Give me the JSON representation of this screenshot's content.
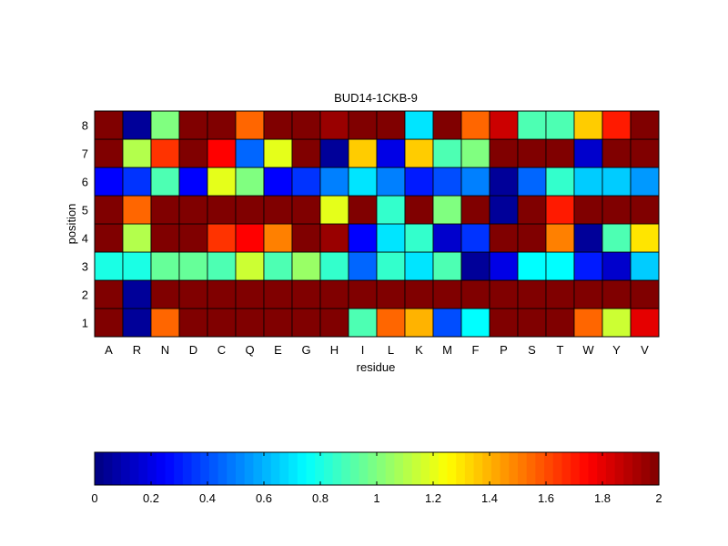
{
  "chart_data": {
    "type": "heatmap",
    "title": "BUD14-1CKB-9",
    "xlabel": "residue",
    "ylabel": "position",
    "x": [
      "A",
      "R",
      "N",
      "D",
      "C",
      "Q",
      "E",
      "G",
      "H",
      "I",
      "L",
      "K",
      "M",
      "F",
      "P",
      "S",
      "T",
      "W",
      "Y",
      "V"
    ],
    "y": [
      "1",
      "2",
      "3",
      "4",
      "5",
      "6",
      "7",
      "8"
    ],
    "values": [
      [
        2.0,
        0.05,
        1.55,
        2.0,
        2.0,
        2.0,
        2.0,
        2.0,
        2.0,
        0.9,
        1.55,
        1.4,
        0.4,
        0.75,
        2.0,
        2.0,
        2.0,
        1.55,
        1.15,
        1.8
      ],
      [
        2.0,
        0.05,
        2.0,
        2.0,
        2.0,
        2.0,
        2.0,
        2.0,
        2.0,
        2.0,
        2.0,
        2.0,
        2.0,
        2.0,
        2.0,
        2.0,
        2.0,
        2.0,
        2.0,
        2.0
      ],
      [
        0.8,
        0.8,
        0.95,
        0.95,
        0.9,
        1.15,
        0.9,
        1.05,
        0.85,
        0.45,
        0.85,
        0.7,
        0.9,
        0.05,
        0.2,
        0.75,
        0.75,
        0.3,
        0.15,
        0.65
      ],
      [
        2.0,
        1.1,
        2.0,
        2.0,
        1.65,
        1.75,
        1.5,
        2.0,
        1.95,
        0.25,
        0.7,
        0.85,
        0.15,
        0.35,
        2.0,
        2.0,
        1.5,
        0.05,
        0.9,
        1.3
      ],
      [
        2.0,
        1.55,
        2.0,
        2.0,
        2.0,
        2.0,
        2.0,
        2.0,
        1.2,
        2.0,
        0.85,
        2.0,
        1.0,
        2.0,
        0.05,
        2.0,
        1.7,
        2.0,
        2.0,
        2.0
      ],
      [
        0.25,
        0.35,
        0.9,
        0.25,
        1.2,
        1.0,
        0.25,
        0.35,
        0.5,
        0.7,
        0.5,
        0.3,
        0.4,
        0.5,
        0.05,
        0.45,
        0.85,
        0.65,
        0.65,
        0.55
      ],
      [
        2.0,
        1.1,
        1.65,
        2.0,
        1.75,
        0.45,
        1.2,
        2.0,
        0.05,
        1.35,
        0.2,
        1.35,
        0.9,
        1.0,
        2.0,
        2.0,
        2.0,
        0.15,
        2.0,
        2.0
      ],
      [
        2.0,
        0.05,
        1.0,
        2.0,
        2.0,
        1.55,
        2.0,
        2.0,
        1.95,
        2.0,
        2.0,
        0.7,
        2.0,
        1.55,
        1.85,
        0.9,
        0.9,
        1.35,
        1.7,
        2.0
      ]
    ],
    "colormap": "jet",
    "clim": [
      0,
      2
    ],
    "colorbar": {
      "orientation": "horizontal",
      "location": "bottom",
      "ticks": [
        "0",
        "0.2",
        "0.4",
        "0.6",
        "0.8",
        "1",
        "1.2",
        "1.4",
        "1.6",
        "1.8",
        "2"
      ]
    }
  }
}
